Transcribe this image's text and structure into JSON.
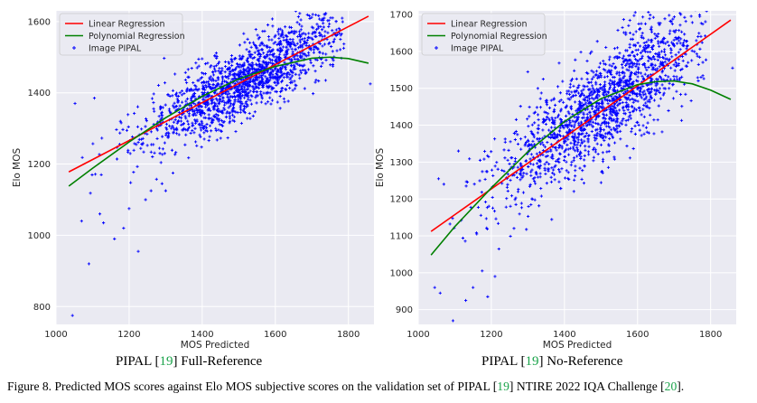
{
  "chart_data": [
    {
      "type": "scatter",
      "title": "",
      "xlabel": "MOS Predicted",
      "ylabel": "Elo MOS",
      "xlim": [
        1000,
        1870
      ],
      "ylim": [
        750,
        1630
      ],
      "xticks": [
        1000,
        1200,
        1400,
        1600,
        1800
      ],
      "yticks": [
        800,
        1000,
        1200,
        1400,
        1600
      ],
      "xtick_labels": [
        "1000",
        "1200",
        "1400",
        "1600",
        "1800"
      ],
      "ytick_labels": [
        "800",
        "1000",
        "1200",
        "1400",
        "1600"
      ],
      "grid": true,
      "legend_position": "top-left",
      "series": [
        {
          "name": "Linear Regression",
          "kind": "line",
          "color": "#ff0000",
          "x": [
            1035,
            1855
          ],
          "y": [
            1178,
            1615
          ]
        },
        {
          "name": "Polynomial Regression",
          "kind": "line",
          "color": "#008000",
          "x": [
            1035,
            1100,
            1200,
            1300,
            1400,
            1500,
            1600,
            1700,
            1750,
            1800,
            1855
          ],
          "y": [
            1138,
            1188,
            1262,
            1330,
            1390,
            1439,
            1474,
            1497,
            1500,
            1496,
            1483
          ]
        },
        {
          "name": "Image PIPAL",
          "kind": "scatter",
          "color": "#0000ff",
          "marker": "+",
          "cloud": {
            "n": 1600,
            "seed": 11,
            "x_mean": 1520,
            "x_sd": 140,
            "x_min": 1030,
            "x_max": 1790,
            "slope": 0.53,
            "intercept": 630,
            "noise_sd": 48
          },
          "outliers_x": [
            1045,
            1052,
            1070,
            1090,
            1105,
            1120,
            1130,
            1160,
            1185,
            1200,
            1225,
            1245,
            1260,
            1290,
            1300,
            1320,
            1860
          ],
          "outliers_y": [
            775,
            1370,
            1040,
            920,
            1385,
            1060,
            1035,
            990,
            1020,
            1075,
            955,
            1100,
            1125,
            1145,
            1125,
            1175,
            1425
          ]
        }
      ]
    },
    {
      "type": "scatter",
      "title": "",
      "xlabel": "MOS Predicted",
      "ylabel": "Elo MOS",
      "xlim": [
        1000,
        1870
      ],
      "ylim": [
        860,
        1710
      ],
      "xticks": [
        1000,
        1200,
        1400,
        1600,
        1800
      ],
      "yticks": [
        900,
        1000,
        1100,
        1200,
        1300,
        1400,
        1500,
        1600,
        1700
      ],
      "xtick_labels": [
        "1000",
        "1200",
        "1400",
        "1600",
        "1800"
      ],
      "ytick_labels": [
        "900",
        "1000",
        "1100",
        "1200",
        "1300",
        "1400",
        "1500",
        "1600",
        "1700"
      ],
      "grid": true,
      "legend_position": "top-left",
      "series": [
        {
          "name": "Linear Regression",
          "kind": "line",
          "color": "#ff0000",
          "x": [
            1035,
            1855
          ],
          "y": [
            1112,
            1685
          ]
        },
        {
          "name": "Polynomial Regression",
          "kind": "line",
          "color": "#008000",
          "x": [
            1035,
            1100,
            1200,
            1300,
            1400,
            1500,
            1600,
            1650,
            1700,
            1750,
            1800,
            1855
          ],
          "y": [
            1048,
            1125,
            1230,
            1328,
            1410,
            1472,
            1510,
            1518,
            1520,
            1512,
            1495,
            1470
          ]
        },
        {
          "name": "Image PIPAL",
          "kind": "scatter",
          "color": "#0000ff",
          "marker": "+",
          "cloud": {
            "n": 1600,
            "seed": 23,
            "x_mean": 1500,
            "x_sd": 150,
            "x_min": 1030,
            "x_max": 1790,
            "slope": 0.7,
            "intercept": 400,
            "noise_sd": 70
          },
          "outliers_x": [
            1045,
            1060,
            1070,
            1095,
            1110,
            1130,
            1150,
            1160,
            1175,
            1190,
            1210,
            1860
          ],
          "outliers_y": [
            960,
            945,
            1240,
            870,
            1330,
            925,
            960,
            1105,
            1005,
            935,
            990,
            1555
          ]
        }
      ]
    }
  ],
  "legend": {
    "linear": "Linear Regression",
    "poly": "Polynomial Regression",
    "scatter": "Image PIPAL"
  },
  "subcaptions": {
    "left_prefix": "PIPAL [",
    "left_ref": "19",
    "left_suffix": "] Full-Reference",
    "right_prefix": "PIPAL [",
    "right_ref": "19",
    "right_suffix": "] No-Reference"
  },
  "caption": {
    "part1": "Figure 8. Predicted MOS scores against Elo MOS subjective scores on the validation set of PIPAL [",
    "ref1": "19",
    "part2": "] NTIRE 2022 IQA Challenge [",
    "ref2": "20",
    "part3": "]."
  }
}
